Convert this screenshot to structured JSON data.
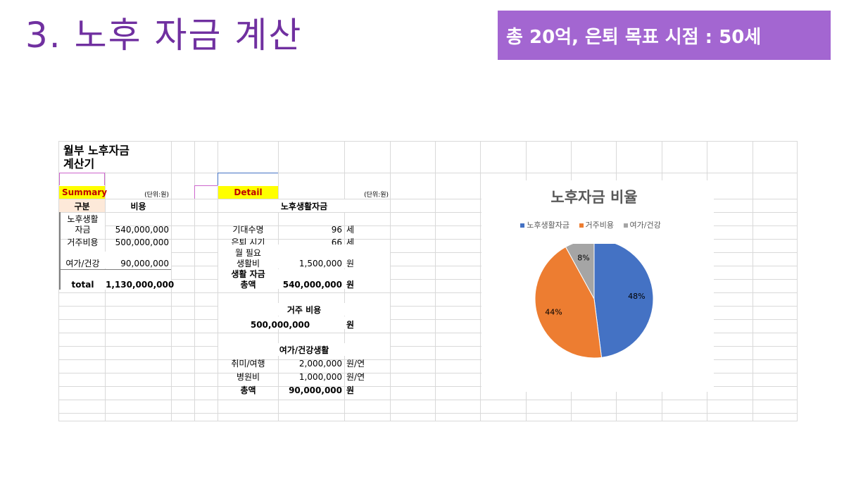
{
  "slide": {
    "title": "3. 노후 자금 계산",
    "banner": "총 20억, 은퇴 목표 시점 : 50세"
  },
  "sheet": {
    "heading_line1": "월부 노후자금",
    "heading_line2": "계산기",
    "summary": {
      "label": "Summary",
      "unit": "(단위:원)",
      "col_category": "구분",
      "col_cost": "비용",
      "rows": [
        {
          "name_line1": "노후생활",
          "name_line2": "자금",
          "value": "540,000,000"
        },
        {
          "name_line1": "거주비용",
          "name_line2": "",
          "value": "500,000,000"
        },
        {
          "name_line1": "여가/건강",
          "name_line2": "",
          "value": "90,000,000"
        }
      ],
      "total_label": "total",
      "total_value": "1,130,000,000"
    },
    "detail": {
      "label": "Detail",
      "unit": "(단위:원)",
      "living": {
        "header": "노후생활자금",
        "life_label": "기대수명",
        "life_value": "96",
        "life_unit": "세",
        "retire_label": "은퇴 시기",
        "retire_value": "66",
        "retire_unit": "세",
        "monthly_label_1": "월 필요",
        "monthly_label_2": "생활비",
        "monthly_value": "1,500,000",
        "monthly_unit": "원",
        "total_label_1": "생활 자금",
        "total_label_2": "총액",
        "total_value": "540,000,000",
        "total_unit": "원"
      },
      "housing": {
        "header": "거주 비용",
        "value": "500,000,000",
        "unit": "원"
      },
      "leisure": {
        "header": "여가/건강생활",
        "hobby_label": "취미/여행",
        "hobby_value": "2,000,000",
        "hobby_unit": "원/연",
        "hospital_label": "병원비",
        "hospital_value": "1,000,000",
        "hospital_unit": "원/연",
        "total_label": "총액",
        "total_value": "90,000,000",
        "total_unit": "원"
      }
    }
  },
  "chart_data": {
    "type": "pie",
    "title": "노후자금 비율",
    "legend_position": "top",
    "categories": [
      "노후생활자금",
      "거주비용",
      "여가/건강"
    ],
    "values": [
      48,
      44,
      8
    ],
    "labels": [
      "48%",
      "44%",
      "8%"
    ],
    "colors": [
      "#4472c4",
      "#ed7d31",
      "#a5a5a5"
    ]
  }
}
